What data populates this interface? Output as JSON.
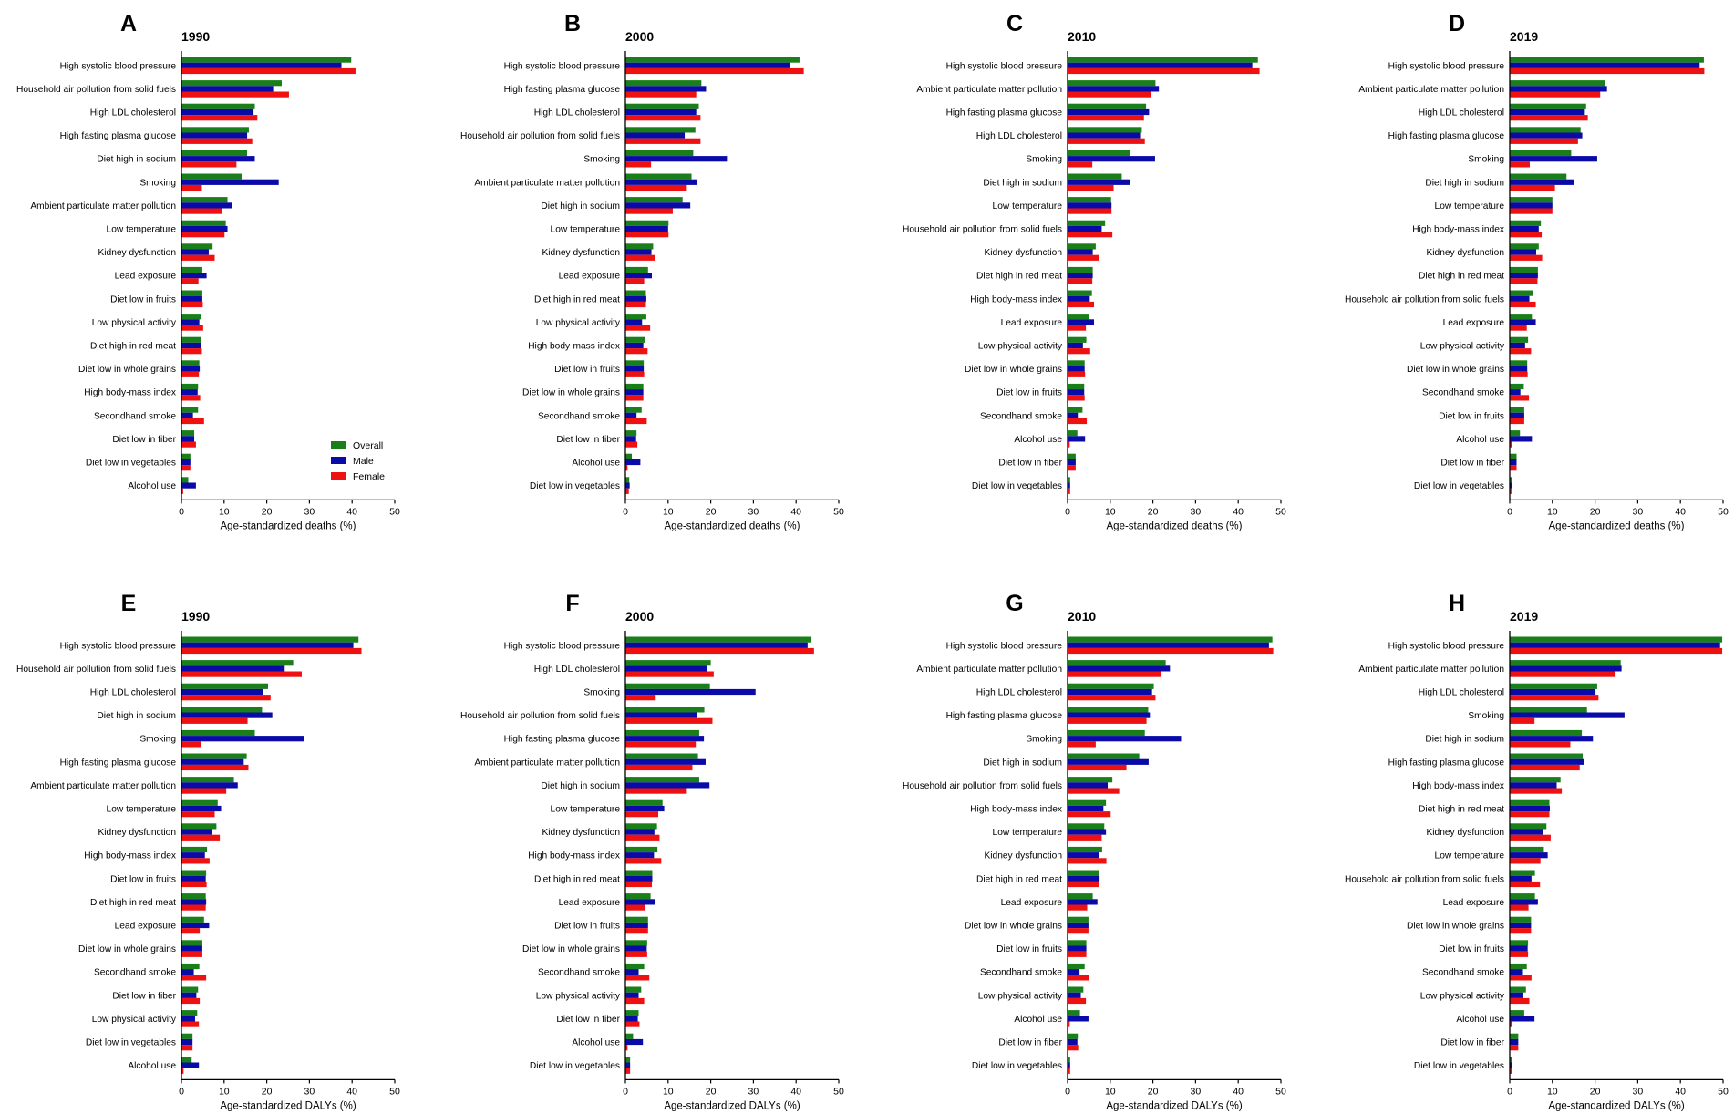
{
  "colors": {
    "overall": "#1a7f1a",
    "male": "#0a0aa8",
    "female": "#ee1111",
    "axis": "#000000"
  },
  "legend": {
    "labels": [
      "Overall",
      "Male",
      "Female"
    ]
  },
  "chart_data": [
    {
      "panel": "A",
      "title": "1990",
      "type": "bar",
      "orientation": "horizontal",
      "xlabel": "Age-standardized deaths (%)",
      "xlim": [
        0,
        50
      ],
      "xticks": [
        0,
        10,
        20,
        30,
        40,
        50
      ],
      "show_legend": true,
      "categories": [
        "High systolic blood pressure",
        "Household air pollution from solid fuels",
        "High LDL cholesterol",
        "High fasting plasma glucose",
        "Diet high in sodium",
        "Smoking",
        "Ambient particulate matter pollution",
        "Low temperature",
        "Kidney dysfunction",
        "Lead exposure",
        "Diet low in fruits",
        "Low physical activity",
        "Diet high in red meat",
        "Diet low in whole grains",
        "High body-mass index",
        "Secondhand smoke",
        "Diet low in fiber",
        "Diet low in vegetables",
        "Alcohol use"
      ],
      "series": [
        {
          "name": "Overall",
          "values": [
            39.8,
            23.5,
            17.2,
            15.8,
            15.4,
            14.1,
            10.8,
            10.4,
            7.3,
            4.9,
            4.9,
            4.6,
            4.6,
            4.2,
            3.9,
            3.9,
            3.0,
            2.1,
            1.6
          ]
        },
        {
          "name": "Male",
          "values": [
            37.5,
            21.5,
            16.9,
            15.4,
            17.2,
            22.8,
            11.9,
            10.8,
            6.4,
            5.9,
            4.9,
            4.2,
            4.5,
            4.3,
            3.8,
            2.7,
            3.0,
            2.1,
            3.4
          ]
        },
        {
          "name": "Female",
          "values": [
            40.8,
            25.2,
            17.8,
            16.6,
            12.9,
            4.8,
            9.5,
            10.1,
            7.8,
            4.0,
            5.0,
            5.1,
            4.8,
            4.1,
            4.4,
            5.3,
            3.4,
            2.1,
            0.4
          ]
        }
      ]
    },
    {
      "panel": "B",
      "title": "2000",
      "type": "bar",
      "orientation": "horizontal",
      "xlabel": "Age-standardized deaths (%)",
      "xlim": [
        0,
        50
      ],
      "xticks": [
        0,
        10,
        20,
        30,
        40,
        50
      ],
      "show_legend": false,
      "categories": [
        "High systolic blood pressure",
        "High fasting plasma glucose",
        "High LDL cholesterol",
        "Household air pollution from solid fuels",
        "Smoking",
        "Ambient particulate matter pollution",
        "Diet high in sodium",
        "Low temperature",
        "Kidney dysfunction",
        "Lead exposure",
        "Diet high in red meat",
        "Low physical activity",
        "High body-mass index",
        "Diet low in fruits",
        "Diet low in whole grains",
        "Secondhand smoke",
        "Diet low in fiber",
        "Alcohol use",
        "Diet low in vegetables"
      ],
      "series": [
        {
          "name": "Overall",
          "values": [
            40.8,
            17.8,
            17.2,
            16.4,
            15.9,
            15.5,
            13.4,
            10.1,
            6.5,
            5.3,
            4.8,
            4.9,
            4.5,
            4.3,
            4.2,
            3.8,
            2.6,
            1.5,
            0.9
          ]
        },
        {
          "name": "Male",
          "values": [
            38.5,
            18.9,
            16.6,
            13.9,
            23.8,
            16.8,
            15.2,
            10.0,
            6.1,
            6.2,
            4.9,
            3.9,
            4.2,
            4.3,
            4.2,
            2.6,
            2.5,
            3.5,
            1.0
          ]
        },
        {
          "name": "Female",
          "values": [
            41.8,
            16.6,
            17.6,
            17.6,
            6.0,
            14.4,
            11.1,
            10.1,
            7.0,
            4.4,
            4.8,
            5.8,
            5.2,
            4.4,
            4.2,
            5.0,
            2.8,
            0.5,
            0.8
          ]
        }
      ]
    },
    {
      "panel": "C",
      "title": "2010",
      "type": "bar",
      "orientation": "horizontal",
      "xlabel": "Age-standardized deaths (%)",
      "xlim": [
        0,
        50
      ],
      "xticks": [
        0,
        10,
        20,
        30,
        40,
        50
      ],
      "show_legend": false,
      "categories": [
        "High systolic blood pressure",
        "Ambient particulate matter pollution",
        "High fasting plasma glucose",
        "High LDL cholesterol",
        "Smoking",
        "Diet high in sodium",
        "Low temperature",
        "Household air pollution from solid fuels",
        "Kidney dysfunction",
        "Diet high in red meat",
        "High body-mass index",
        "Lead exposure",
        "Low physical activity",
        "Diet low in whole grains",
        "Diet low in fruits",
        "Secondhand smoke",
        "Alcohol use",
        "Diet low in fiber",
        "Diet low in vegetables"
      ],
      "series": [
        {
          "name": "Overall",
          "values": [
            44.6,
            20.6,
            18.4,
            17.4,
            14.6,
            12.7,
            10.2,
            8.8,
            6.6,
            5.9,
            5.7,
            5.1,
            4.4,
            4.0,
            3.9,
            3.5,
            2.3,
            1.9,
            0.6
          ]
        },
        {
          "name": "Male",
          "values": [
            43.3,
            21.4,
            19.1,
            17.0,
            20.5,
            14.7,
            10.3,
            8.0,
            5.9,
            5.9,
            5.2,
            6.2,
            3.6,
            4.0,
            3.9,
            2.4,
            4.1,
            1.9,
            0.6
          ]
        },
        {
          "name": "Female",
          "values": [
            45.0,
            19.5,
            17.9,
            18.1,
            5.8,
            10.8,
            10.3,
            10.5,
            7.3,
            5.8,
            6.2,
            4.3,
            5.3,
            4.1,
            4.0,
            4.5,
            0.5,
            1.9,
            0.6
          ]
        }
      ]
    },
    {
      "panel": "D",
      "title": "2019",
      "type": "bar",
      "orientation": "horizontal",
      "xlabel": "Age-standardized deaths (%)",
      "xlim": [
        0,
        50
      ],
      "xticks": [
        0,
        10,
        20,
        30,
        40,
        50
      ],
      "show_legend": false,
      "categories": [
        "High systolic blood pressure",
        "Ambient particulate matter pollution",
        "High LDL cholesterol",
        "High fasting plasma glucose",
        "Smoking",
        "Diet high in sodium",
        "Low temperature",
        "High body-mass index",
        "Kidney dysfunction",
        "Diet high in red meat",
        "Household air pollution from solid fuels",
        "Lead exposure",
        "Low physical activity",
        "Diet low in whole grains",
        "Secondhand smoke",
        "Diet low in fruits",
        "Alcohol use",
        "Diet low in fiber",
        "Diet low in vegetables"
      ],
      "series": [
        {
          "name": "Overall",
          "values": [
            45.5,
            22.3,
            17.9,
            16.6,
            14.4,
            13.3,
            10.0,
            7.3,
            6.8,
            6.6,
            5.4,
            5.2,
            4.3,
            4.1,
            3.3,
            3.4,
            2.4,
            1.6,
            0.5
          ]
        },
        {
          "name": "Male",
          "values": [
            44.5,
            22.8,
            17.6,
            17.0,
            20.5,
            15.0,
            10.0,
            6.8,
            6.2,
            6.6,
            4.6,
            6.1,
            3.6,
            4.1,
            2.5,
            3.4,
            5.2,
            1.6,
            0.5
          ]
        },
        {
          "name": "Female",
          "values": [
            45.6,
            21.2,
            18.3,
            16.0,
            4.7,
            10.6,
            10.0,
            7.5,
            7.6,
            6.5,
            6.1,
            4.0,
            5.0,
            4.2,
            4.5,
            3.4,
            0.6,
            1.6,
            0.4
          ]
        }
      ]
    },
    {
      "panel": "E",
      "title": "1990",
      "type": "bar",
      "orientation": "horizontal",
      "xlabel": "Age-standardized DALYs (%)",
      "xlim": [
        0,
        50
      ],
      "xticks": [
        0,
        10,
        20,
        30,
        40,
        50
      ],
      "show_legend": false,
      "categories": [
        "High systolic blood pressure",
        "Household air pollution from solid fuels",
        "High LDL cholesterol",
        "Diet high in sodium",
        "Smoking",
        "High fasting plasma glucose",
        "Ambient particulate matter pollution",
        "Low temperature",
        "Kidney dysfunction",
        "High body-mass index",
        "Diet low in fruits",
        "Diet high in red meat",
        "Lead exposure",
        "Diet low in whole grains",
        "Secondhand smoke",
        "Diet low in fiber",
        "Low physical activity",
        "Diet low in vegetables",
        "Alcohol use"
      ],
      "series": [
        {
          "name": "Overall",
          "values": [
            41.5,
            26.2,
            20.3,
            18.9,
            17.2,
            15.3,
            12.3,
            8.5,
            8.2,
            6.0,
            5.8,
            5.7,
            5.3,
            4.9,
            4.2,
            3.9,
            3.7,
            2.6,
            2.4
          ]
        },
        {
          "name": "Male",
          "values": [
            40.3,
            24.2,
            19.2,
            21.3,
            28.8,
            14.6,
            13.2,
            9.3,
            7.2,
            5.5,
            5.7,
            5.8,
            6.5,
            4.9,
            2.9,
            3.5,
            3.2,
            2.6,
            4.1
          ]
        },
        {
          "name": "Female",
          "values": [
            42.2,
            28.2,
            20.9,
            15.5,
            4.5,
            15.7,
            10.5,
            7.8,
            9.0,
            6.6,
            5.9,
            5.7,
            4.3,
            4.9,
            5.8,
            4.3,
            4.1,
            2.6,
            0.5
          ]
        }
      ]
    },
    {
      "panel": "F",
      "title": "2000",
      "type": "bar",
      "orientation": "horizontal",
      "xlabel": "Age-standardized DALYs (%)",
      "xlim": [
        0,
        50
      ],
      "xticks": [
        0,
        10,
        20,
        30,
        40,
        50
      ],
      "show_legend": false,
      "categories": [
        "High systolic blood pressure",
        "High LDL cholesterol",
        "Smoking",
        "Household air pollution from solid fuels",
        "High fasting plasma glucose",
        "Ambient particulate matter pollution",
        "Diet high in sodium",
        "Low temperature",
        "Kidney dysfunction",
        "High body-mass index",
        "Diet high in red meat",
        "Lead exposure",
        "Diet low in fruits",
        "Diet low in whole grains",
        "Secondhand smoke",
        "Low physical activity",
        "Diet low in fiber",
        "Alcohol use",
        "Diet low in vegetables"
      ],
      "series": [
        {
          "name": "Overall",
          "values": [
            43.6,
            20.0,
            19.8,
            18.5,
            17.3,
            17.0,
            17.3,
            8.7,
            7.4,
            7.5,
            6.3,
            5.9,
            5.3,
            5.1,
            4.4,
            3.7,
            3.1,
            1.8,
            1.1
          ]
        },
        {
          "name": "Male",
          "values": [
            42.7,
            19.1,
            30.5,
            16.7,
            18.4,
            18.8,
            19.7,
            9.1,
            6.8,
            6.7,
            6.3,
            7.0,
            5.3,
            5.0,
            3.1,
            3.1,
            2.9,
            4.1,
            1.1
          ]
        },
        {
          "name": "Female",
          "values": [
            44.2,
            20.7,
            7.1,
            20.4,
            16.5,
            15.7,
            14.4,
            7.7,
            8.0,
            8.4,
            6.2,
            4.5,
            5.3,
            5.1,
            5.6,
            4.4,
            3.3,
            0.5,
            1.1
          ]
        }
      ]
    },
    {
      "panel": "G",
      "title": "2010",
      "type": "bar",
      "orientation": "horizontal",
      "xlabel": "Age-standardized DALYs (%)",
      "xlim": [
        0,
        50
      ],
      "xticks": [
        0,
        10,
        20,
        30,
        40,
        50
      ],
      "show_legend": false,
      "categories": [
        "High systolic blood pressure",
        "Ambient particulate matter pollution",
        "High LDL cholesterol",
        "High fasting plasma glucose",
        "Smoking",
        "Diet high in sodium",
        "Household air pollution from solid fuels",
        "High body-mass index",
        "Low temperature",
        "Kidney dysfunction",
        "Diet high in red meat",
        "Lead exposure",
        "Diet low in whole grains",
        "Diet low in fruits",
        "Secondhand smoke",
        "Low physical activity",
        "Alcohol use",
        "Diet low in fiber",
        "Diet low in vegetables"
      ],
      "series": [
        {
          "name": "Overall",
          "values": [
            48.0,
            23.0,
            20.2,
            18.9,
            18.1,
            16.8,
            10.5,
            9.0,
            8.6,
            8.1,
            7.4,
            5.9,
            4.9,
            4.4,
            4.0,
            3.7,
            2.9,
            2.4,
            0.6
          ]
        },
        {
          "name": "Male",
          "values": [
            47.2,
            24.0,
            19.8,
            19.3,
            26.6,
            19.0,
            9.4,
            8.4,
            9.0,
            7.4,
            7.5,
            7.0,
            4.9,
            4.4,
            2.8,
            3.1,
            4.9,
            2.3,
            0.6
          ]
        },
        {
          "name": "Female",
          "values": [
            48.2,
            21.9,
            20.6,
            18.5,
            6.6,
            13.8,
            12.1,
            10.1,
            8.0,
            9.1,
            7.4,
            4.6,
            4.9,
            4.4,
            5.1,
            4.3,
            0.5,
            2.5,
            0.6
          ]
        }
      ]
    },
    {
      "panel": "H",
      "title": "2019",
      "type": "bar",
      "orientation": "horizontal",
      "xlabel": "Age-standardized DALYs (%)",
      "xlim": [
        0,
        50
      ],
      "xticks": [
        0,
        10,
        20,
        30,
        40,
        50
      ],
      "show_legend": false,
      "categories": [
        "High systolic blood pressure",
        "Ambient particulate matter pollution",
        "High LDL cholesterol",
        "Smoking",
        "Diet high in sodium",
        "High fasting plasma glucose",
        "High body-mass index",
        "Diet high in red meat",
        "Kidney dysfunction",
        "Low temperature",
        "Household air pollution from solid fuels",
        "Lead exposure",
        "Diet low in whole grains",
        "Diet low in fruits",
        "Secondhand smoke",
        "Low physical activity",
        "Alcohol use",
        "Diet low in fiber",
        "Diet low in vegetables"
      ],
      "series": [
        {
          "name": "Overall",
          "values": [
            49.8,
            26.0,
            20.5,
            18.1,
            16.9,
            17.1,
            11.9,
            9.3,
            8.6,
            8.0,
            5.9,
            5.9,
            5.0,
            4.3,
            4.0,
            3.8,
            3.4,
            2.0,
            0.5
          ]
        },
        {
          "name": "Male",
          "values": [
            49.3,
            26.2,
            20.1,
            26.9,
            19.5,
            17.4,
            11.0,
            9.4,
            7.8,
            8.9,
            5.1,
            6.6,
            5.0,
            4.2,
            3.1,
            3.2,
            5.8,
            2.0,
            0.5
          ]
        },
        {
          "name": "Female",
          "values": [
            49.8,
            24.8,
            20.8,
            5.8,
            14.2,
            16.4,
            12.2,
            9.3,
            9.6,
            7.2,
            7.1,
            4.4,
            5.0,
            4.3,
            5.1,
            4.6,
            0.6,
            2.0,
            0.5
          ]
        }
      ]
    }
  ]
}
